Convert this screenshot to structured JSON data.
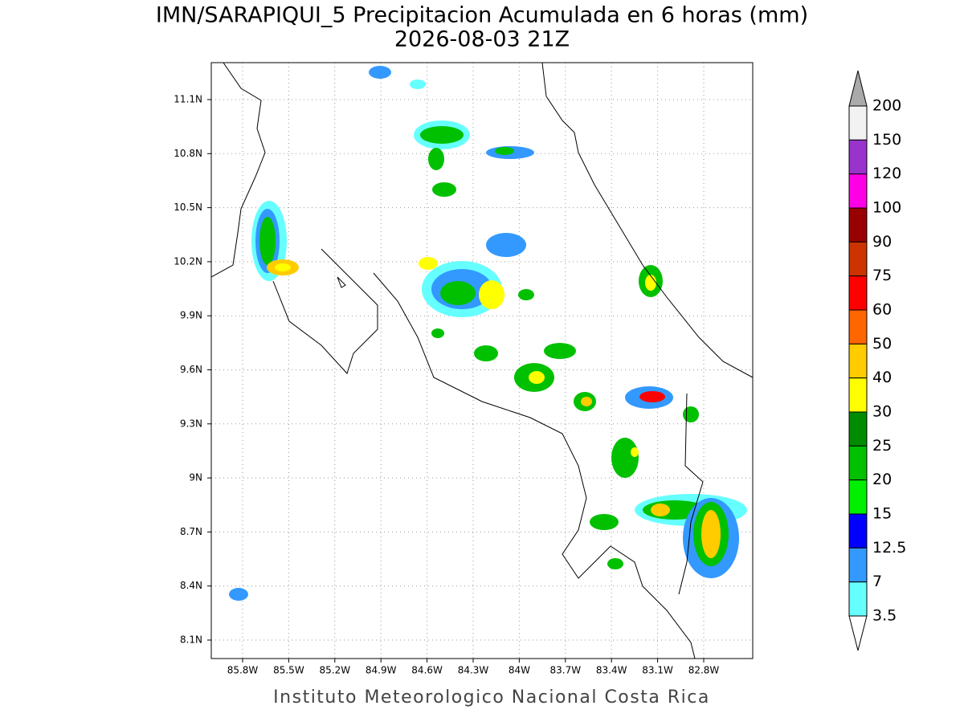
{
  "title": "IMN/SARAPIQUI_5 Precipitacion Acumulada en 6 horas (mm)",
  "subtitle": "2026-08-03 21Z",
  "lat_labels": [
    "11.1N",
    "10.8N",
    "10.5N",
    "10.2N",
    "9.9N",
    "9.6N",
    "9.3N",
    "9N",
    "8.7N",
    "8.4N",
    "8.1N"
  ],
  "lon_labels": [
    "85.8W",
    "85.5W",
    "85.2W",
    "84.9W",
    "84.6W",
    "84.3W",
    "84W",
    "83.7W",
    "83.4W",
    "83.1W",
    "82.8W"
  ],
  "colorbar": {
    "labels": [
      "200",
      "150",
      "120",
      "100",
      "90",
      "75",
      "60",
      "50",
      "40",
      "30",
      "25",
      "20",
      "15",
      "12.5",
      "7",
      "3.5"
    ],
    "colors": [
      "#f2f2f2",
      "#9933cc",
      "#ff00e6",
      "#990000",
      "#cc3300",
      "#ff0000",
      "#ff6600",
      "#ffcc00",
      "#ffff00",
      "#008c00",
      "#00c000",
      "#00f000",
      "#0000ff",
      "#3399ff",
      "#66ffff"
    ],
    "over_color": "#aaaaaa",
    "under_color": "#ffffff"
  },
  "footer": "Instituto Meteorologico Nacional Costa Rica"
}
